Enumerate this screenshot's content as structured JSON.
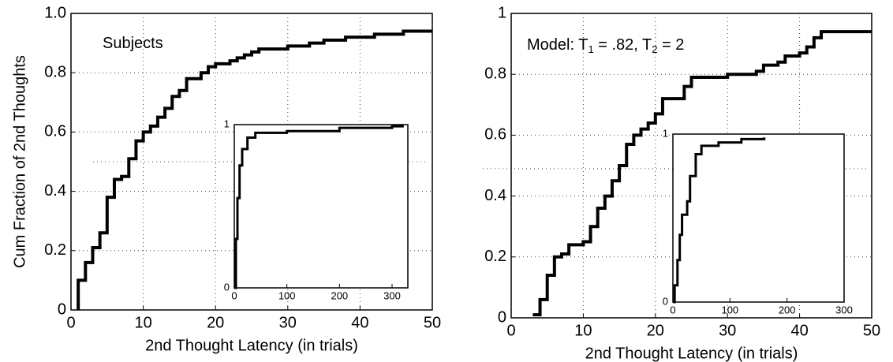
{
  "chart_data": [
    {
      "type": "step",
      "annotation": [
        "Subjects"
      ],
      "xlabel": "2nd Thought Latency (in trials)",
      "ylabel": "Cum Fraction of 2nd Thoughts",
      "xlim": [
        0,
        50
      ],
      "ylim": [
        0,
        1
      ],
      "xticks": [
        0,
        10,
        20,
        30,
        40,
        50
      ],
      "yticks": [
        0,
        0.2,
        0.4,
        0.6,
        0.8,
        {
          "value": 1,
          "label": "1.0"
        }
      ],
      "grid": true,
      "color": "#000000",
      "reference_line": 0.5,
      "x": [
        1,
        1,
        2,
        3,
        4,
        5,
        6,
        7,
        8,
        9,
        10,
        11,
        12,
        13,
        14,
        15,
        16,
        18,
        19,
        20,
        22,
        23,
        24,
        25,
        26,
        30,
        33,
        35,
        38,
        42,
        46,
        50
      ],
      "y": [
        0,
        0.1,
        0.16,
        0.21,
        0.26,
        0.38,
        0.44,
        0.45,
        0.51,
        0.57,
        0.6,
        0.62,
        0.65,
        0.68,
        0.72,
        0.74,
        0.78,
        0.8,
        0.82,
        0.83,
        0.84,
        0.85,
        0.86,
        0.87,
        0.88,
        0.89,
        0.9,
        0.91,
        0.92,
        0.93,
        0.94,
        0.94
      ],
      "inset": {
        "type": "step",
        "xlim": [
          0,
          330
        ],
        "ylim": [
          0,
          1
        ],
        "xticks": [
          0,
          100,
          200,
          300
        ],
        "yticks": [
          0,
          1
        ],
        "color": "#000000",
        "x": [
          0,
          3,
          6,
          10,
          15,
          25,
          40,
          100,
          200,
          300,
          320
        ],
        "y": [
          0,
          0.3,
          0.55,
          0.75,
          0.85,
          0.92,
          0.95,
          0.96,
          0.98,
          0.99,
          1
        ]
      }
    },
    {
      "type": "step",
      "annotation": [
        "Model: T",
        "1",
        " = .82, T",
        "2",
        " = 2"
      ],
      "xlabel": "2nd Thought Latency (in trials)",
      "xlim": [
        0,
        50
      ],
      "ylim": [
        0,
        1
      ],
      "xticks": [
        0,
        10,
        20,
        30,
        40,
        50
      ],
      "yticks": [
        0,
        0.2,
        0.4,
        0.6,
        0.8,
        1
      ],
      "grid": true,
      "color": "#000000",
      "reference_line": 0.49,
      "x": [
        3,
        4,
        5,
        6,
        7,
        8,
        10,
        11,
        12,
        13,
        14,
        15,
        16,
        17,
        18,
        19,
        20,
        21,
        24,
        25,
        30,
        34,
        35,
        37,
        38,
        40,
        41,
        42,
        43,
        44,
        50
      ],
      "y": [
        0.01,
        0.06,
        0.14,
        0.2,
        0.21,
        0.24,
        0.25,
        0.3,
        0.36,
        0.4,
        0.45,
        0.5,
        0.57,
        0.6,
        0.62,
        0.64,
        0.67,
        0.72,
        0.76,
        0.79,
        0.8,
        0.81,
        0.83,
        0.84,
        0.86,
        0.87,
        0.89,
        0.92,
        0.94,
        0.94,
        0.94
      ],
      "inset": {
        "type": "step",
        "xlim": [
          0,
          300
        ],
        "ylim": [
          0,
          1
        ],
        "xticks": [
          0,
          100,
          200,
          300
        ],
        "yticks": [
          0,
          1
        ],
        "color": "#000000",
        "x": [
          0,
          3,
          8,
          12,
          16,
          25,
          30,
          40,
          50,
          80,
          120,
          160
        ],
        "y": [
          0,
          0.1,
          0.25,
          0.4,
          0.52,
          0.6,
          0.75,
          0.88,
          0.93,
          0.95,
          0.97,
          0.98
        ]
      }
    }
  ]
}
